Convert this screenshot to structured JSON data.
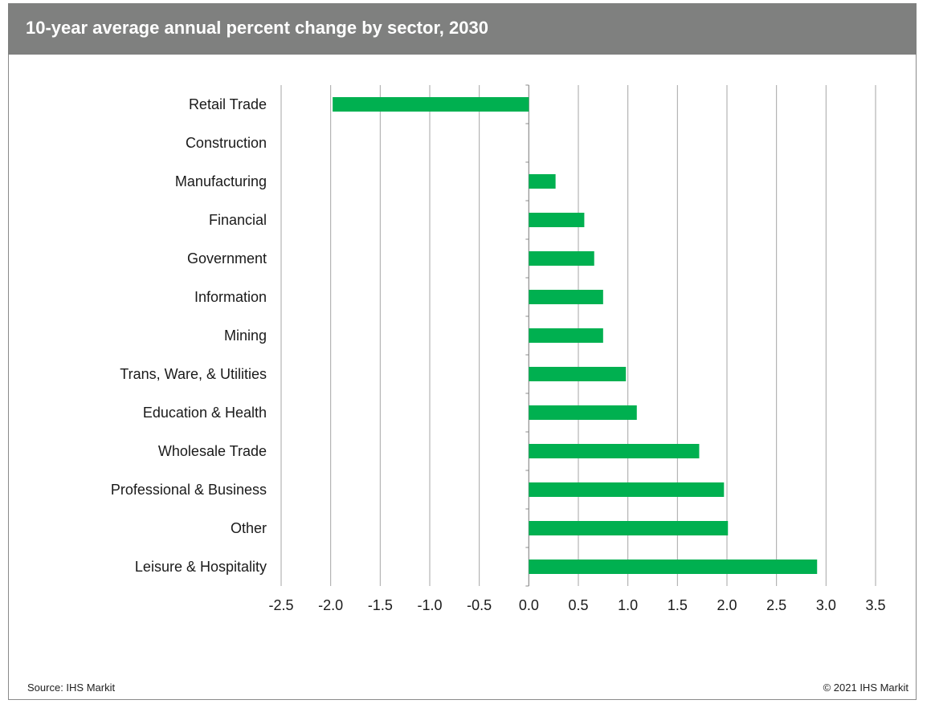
{
  "header": {
    "title": "10-year average annual percent change by sector, 2030"
  },
  "footer": {
    "source": "Source: IHS Markit",
    "copyright": "© 2021 IHS Markit"
  },
  "colors": {
    "bar": "#00b050",
    "title_bar": "#7f807f",
    "grid": "#a6a6a6"
  },
  "chart_data": {
    "type": "bar",
    "orientation": "horizontal",
    "title": "10-year average annual percent change by sector, 2030",
    "xlabel": "",
    "ylabel": "",
    "xlim": [
      -2.5,
      3.5
    ],
    "x_ticks": [
      "-2.5",
      "-2.0",
      "-1.5",
      "-1.0",
      "-0.5",
      "0.0",
      "0.5",
      "1.0",
      "1.5",
      "2.0",
      "2.5",
      "3.0",
      "3.5"
    ],
    "grid": "vertical",
    "legend": "none",
    "categories": [
      "Retail Trade",
      "Construction",
      "Manufacturing",
      "Financial",
      "Government",
      "Information",
      "Mining",
      "Trans, Ware, & Utilities",
      "Education & Health",
      "Wholesale Trade",
      "Professional & Business",
      "Other",
      "Leisure & Hospitality"
    ],
    "values": [
      -1.98,
      0.0,
      0.27,
      0.56,
      0.66,
      0.75,
      0.75,
      0.98,
      1.09,
      1.72,
      1.97,
      2.01,
      2.91
    ]
  }
}
